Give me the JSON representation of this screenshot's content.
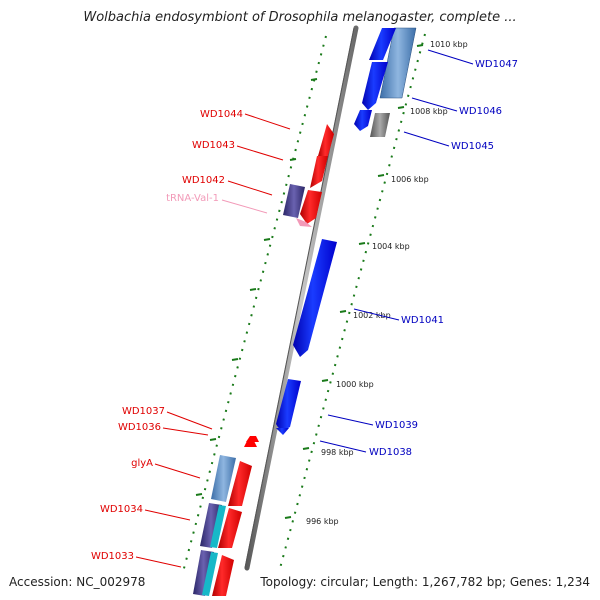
{
  "header": {
    "title": "Wolbachia endosymbiont of Drosophila melanogaster, complete ..."
  },
  "footer": {
    "accession": "Accession: NC_002978",
    "topology": "Topology: circular; Length: 1,267,782 bp; Genes: 1,234"
  },
  "colors": {
    "forward_gene": "#ff0000",
    "reverse_gene": "#0000ff",
    "forward_label": "#e00000",
    "reverse_label": "#0000c0",
    "trna_label": "#f29ab8",
    "tick": "#1a7a1a",
    "backbone": "#8c8c8c"
  },
  "kbp_labels": [
    {
      "text": "1010 kbp"
    },
    {
      "text": "1008 kbp"
    },
    {
      "text": "1006 kbp"
    },
    {
      "text": "1004 kbp"
    },
    {
      "text": "1002 kbp"
    },
    {
      "text": "1000 kbp"
    },
    {
      "text": "998 kbp"
    },
    {
      "text": "996 kbp"
    }
  ],
  "forward_labels": [
    {
      "text": "WD1044"
    },
    {
      "text": "WD1043"
    },
    {
      "text": "WD1042"
    },
    {
      "text": "tRNA-Val-1"
    },
    {
      "text": "WD1037"
    },
    {
      "text": "WD1036"
    },
    {
      "text": "glyA"
    },
    {
      "text": "WD1034"
    },
    {
      "text": "WD1033"
    }
  ],
  "reverse_labels": [
    {
      "text": "WD1047"
    },
    {
      "text": "WD1046"
    },
    {
      "text": "WD1045"
    },
    {
      "text": "WD1041"
    },
    {
      "text": "WD1039"
    },
    {
      "text": "WD1038"
    }
  ]
}
